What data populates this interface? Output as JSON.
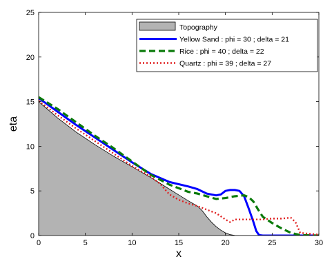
{
  "chart_data": {
    "type": "line",
    "title": "",
    "xlabel": "x",
    "ylabel": "eta",
    "xlim": [
      0,
      30
    ],
    "ylim": [
      0,
      25
    ],
    "xticks": [
      0,
      5,
      10,
      15,
      20,
      25,
      30
    ],
    "yticks": [
      0,
      5,
      10,
      15,
      20,
      25
    ],
    "grid": false,
    "legend_position": "top-right",
    "topography": {
      "name": "Topography",
      "color": "#b3b3b3",
      "x": [
        0,
        2,
        4,
        6,
        8,
        10,
        12,
        14,
        16,
        17,
        17.5,
        18,
        18.5,
        19,
        19.5,
        20,
        20.5,
        21,
        21.5,
        30
      ],
      "y": [
        15.0,
        13.2,
        11.6,
        10.2,
        8.9,
        7.7,
        6.5,
        5.2,
        3.9,
        3.3,
        2.8,
        2.1,
        1.5,
        1.0,
        0.6,
        0.3,
        0.1,
        0.02,
        0.0,
        0.0
      ]
    },
    "series": [
      {
        "name": "Yellow Sand : phi = 30 ; delta = 21",
        "color": "#0000ff",
        "dash": "solid",
        "x": [
          0,
          2,
          4,
          6,
          8,
          10,
          12,
          14,
          16,
          17,
          18,
          19,
          19.5,
          20,
          20.5,
          21,
          21.5,
          22,
          22.5,
          23,
          23.3,
          23.6,
          24,
          25,
          30
        ],
        "y": [
          15.4,
          13.9,
          12.4,
          11.0,
          9.6,
          8.2,
          6.9,
          6.0,
          5.5,
          5.2,
          4.7,
          4.5,
          4.6,
          5.0,
          5.1,
          5.1,
          5.0,
          4.4,
          3.0,
          1.5,
          0.5,
          0.05,
          0.0,
          0.0,
          0.0
        ]
      },
      {
        "name": "Rice : phi = 40 ; delta = 22",
        "color": "#0a7a0a",
        "dash": "dashed",
        "x": [
          0,
          2,
          4,
          6,
          8,
          10,
          12,
          14,
          16,
          17,
          18,
          19,
          20,
          21,
          22,
          22.5,
          23,
          23.5,
          24,
          25,
          26,
          27,
          28,
          30
        ],
        "y": [
          15.5,
          14.2,
          12.7,
          11.2,
          9.8,
          8.3,
          6.8,
          5.7,
          4.9,
          4.7,
          4.4,
          4.1,
          4.2,
          4.4,
          4.5,
          4.3,
          3.8,
          2.9,
          2.1,
          1.4,
          0.8,
          0.3,
          0.05,
          0.0
        ]
      },
      {
        "name": "Quartz : phi = 39 ; delta = 27",
        "color": "#e02020",
        "dash": "dotted",
        "x": [
          0,
          2,
          4,
          6,
          8,
          10,
          12,
          13,
          14,
          15,
          16,
          17,
          18,
          19,
          20,
          20.5,
          21,
          22,
          23,
          24,
          25,
          26,
          27,
          27.5,
          28,
          30
        ],
        "y": [
          15.1,
          13.5,
          12.0,
          10.6,
          9.2,
          7.8,
          6.6,
          5.8,
          4.6,
          4.0,
          3.6,
          3.3,
          2.9,
          2.5,
          1.8,
          1.5,
          1.8,
          1.8,
          1.8,
          1.8,
          1.9,
          1.9,
          2.0,
          1.5,
          0.3,
          0.1
        ]
      }
    ]
  }
}
